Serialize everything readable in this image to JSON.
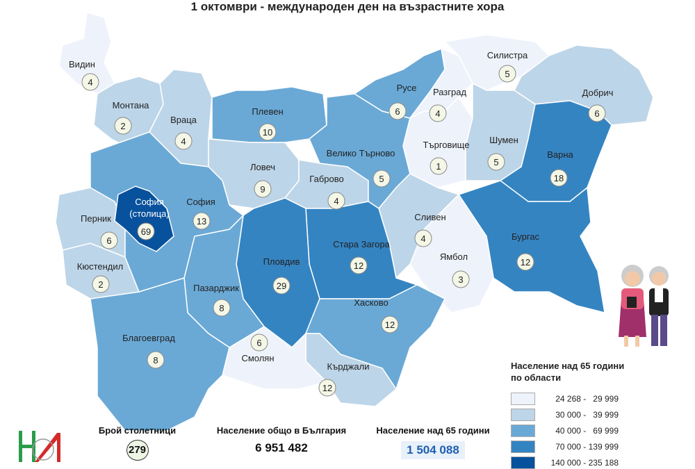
{
  "title": "1 октомври - международен ден на възрастните хора",
  "colors": {
    "c1": "#eef3fb",
    "c2": "#bdd5e8",
    "c3": "#6aa9d6",
    "c4": "#3584c2",
    "c5": "#08519c"
  },
  "regions": [
    {
      "name": "Видин",
      "value": "4",
      "class": "c1"
    },
    {
      "name": "Монтана",
      "value": "2",
      "class": "c2"
    },
    {
      "name": "Враца",
      "value": "4",
      "class": "c2"
    },
    {
      "name": "Плевен",
      "value": "10",
      "class": "c3"
    },
    {
      "name": "Ловеч",
      "value": "9",
      "class": "c2"
    },
    {
      "name": "Габрово",
      "value": "4",
      "class": "c2"
    },
    {
      "name": "Велико Търново",
      "value": "5",
      "class": "c3"
    },
    {
      "name": "Русе",
      "value": "6",
      "class": "c3"
    },
    {
      "name": "Разград",
      "value": "4",
      "class": "c1"
    },
    {
      "name": "Силистра",
      "value": "5",
      "class": "c1"
    },
    {
      "name": "Добрич",
      "value": "6",
      "class": "c2"
    },
    {
      "name": "Търговище",
      "value": "1",
      "class": "c1"
    },
    {
      "name": "Шумен",
      "value": "5",
      "class": "c2"
    },
    {
      "name": "Варна",
      "value": "18",
      "class": "c4"
    },
    {
      "name": "Бургас",
      "value": "12",
      "class": "c4"
    },
    {
      "name": "Ямбол",
      "value": "3",
      "class": "c1"
    },
    {
      "name": "Сливен",
      "value": "4",
      "class": "c2"
    },
    {
      "name": "Стара Загора",
      "value": "12",
      "class": "c4"
    },
    {
      "name": "Пловдив",
      "value": "29",
      "class": "c4"
    },
    {
      "name": "Хасково",
      "value": "12",
      "class": "c3"
    },
    {
      "name": "Кърджали",
      "value": "12",
      "class": "c2"
    },
    {
      "name": "Смолян",
      "value": "6",
      "class": "c1"
    },
    {
      "name": "Пазарджик",
      "value": "8",
      "class": "c3"
    },
    {
      "name": "Благоевград",
      "value": "8",
      "class": "c3"
    },
    {
      "name": "Кюстендил",
      "value": "2",
      "class": "c2"
    },
    {
      "name": "Перник",
      "value": "6",
      "class": "c2"
    },
    {
      "name": "София",
      "value": "13",
      "class": "c3"
    },
    {
      "name": "София",
      "name2": "(столица)",
      "value": "69",
      "class": "c5"
    }
  ],
  "legend": {
    "title_line1": "Население над 65 години",
    "title_line2": "по области",
    "items": [
      {
        "range": "24 268 -   29 999",
        "color": "#eef3fb"
      },
      {
        "range": "30 000 -   39 999",
        "color": "#bdd5e8"
      },
      {
        "range": "40 000 -   69 999",
        "color": "#6aa9d6"
      },
      {
        "range": "70 000 - 139 999",
        "color": "#3584c2"
      },
      {
        "range": "140 000 - 235 188",
        "color": "#08519c"
      }
    ]
  },
  "stats": {
    "centenarians_label": "Брой столетници",
    "centenarians": "279",
    "total_label": "Население общо в България",
    "total": "6 951 482",
    "over65_label": "Население над 65 години",
    "over65": "1 504 088"
  },
  "logo": {
    "text": "НИ"
  }
}
